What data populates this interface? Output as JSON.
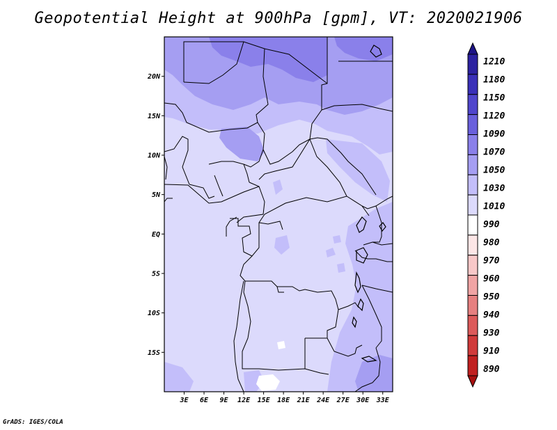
{
  "title": "Geopotential Height at 900hPa [gpm], VT: 2020021906",
  "credit": "GrADS: IGES/COLA",
  "map": {
    "lon_range": [
      0,
      34.5
    ],
    "lat_range": [
      -20,
      25
    ],
    "lon_ticks": [
      {
        "value": 3,
        "label": "3E"
      },
      {
        "value": 6,
        "label": "6E"
      },
      {
        "value": 9,
        "label": "9E"
      },
      {
        "value": 12,
        "label": "12E"
      },
      {
        "value": 15,
        "label": "15E"
      },
      {
        "value": 18,
        "label": "18E"
      },
      {
        "value": 21,
        "label": "21E"
      },
      {
        "value": 24,
        "label": "24E"
      },
      {
        "value": 27,
        "label": "27E"
      },
      {
        "value": 30,
        "label": "30E"
      },
      {
        "value": 33,
        "label": "33E"
      }
    ],
    "lat_ticks": [
      {
        "value": 20,
        "label": "20N"
      },
      {
        "value": 15,
        "label": "15N"
      },
      {
        "value": 10,
        "label": "10N"
      },
      {
        "value": 5,
        "label": "5N"
      },
      {
        "value": 0,
        "label": "EQ"
      },
      {
        "value": -5,
        "label": "5S"
      },
      {
        "value": -10,
        "label": "10S"
      },
      {
        "value": -15,
        "label": "15S"
      }
    ]
  },
  "colorbar": {
    "levels": [
      "1210",
      "1180",
      "1150",
      "1120",
      "1090",
      "1070",
      "1050",
      "1030",
      "1010",
      "990",
      "980",
      "970",
      "960",
      "950",
      "940",
      "930",
      "910",
      "890"
    ],
    "colors": [
      "#1e1486",
      "#2c22a0",
      "#3a30b8",
      "#5046cc",
      "#6a60dc",
      "#8a80ea",
      "#a59ef2",
      "#c3befa",
      "#dcdafc",
      "#ffffff",
      "#fde6e6",
      "#f8c8c8",
      "#f0a4a4",
      "#e68080",
      "#dc5a5a",
      "#d03a3a",
      "#c02020",
      "#a81010"
    ]
  },
  "legend_colors": {
    "c1010": "#dcdafc",
    "c1030": "#c3befa",
    "c1050": "#a59ef2",
    "c1070": "#8a80ea",
    "c1090": "#6a60dc",
    "c990": "#ffffff"
  }
}
